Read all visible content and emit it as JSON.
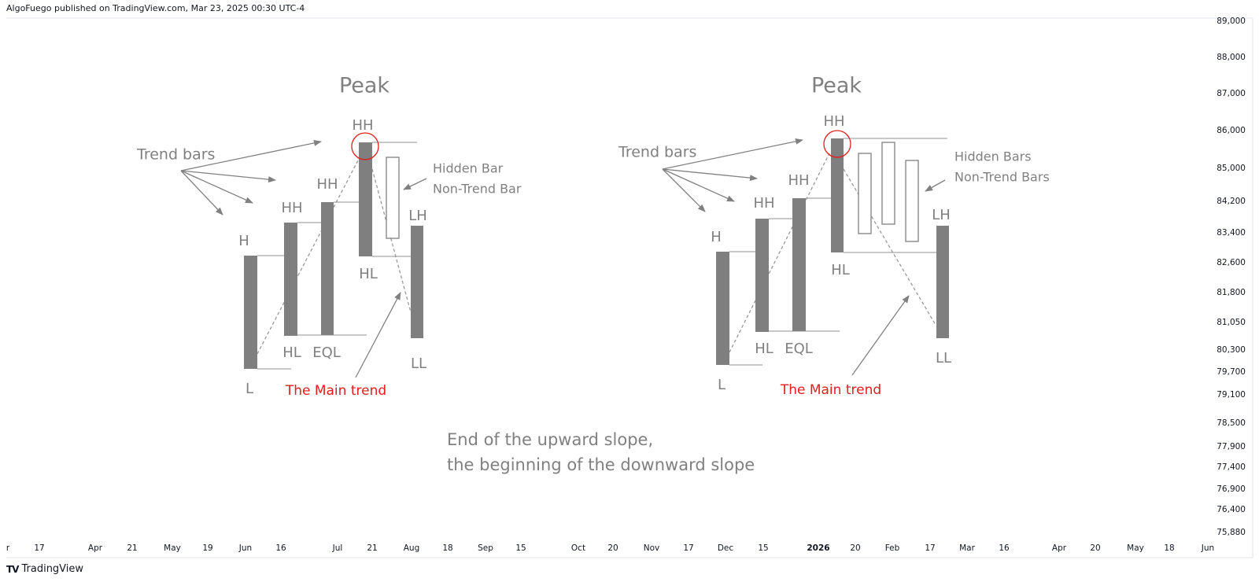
{
  "header": {
    "published": "AlgoFuego published on TradingView.com, Mar 23, 2025 00:30 UTC-4"
  },
  "footer": {
    "logo_mark": "TV",
    "logo_text": "TradingView"
  },
  "price_axis": [
    "89,000",
    "88,000",
    "87,000",
    "86,000",
    "85,000",
    "84,200",
    "83,400",
    "82,600",
    "81,800",
    "81,050",
    "80,300",
    "79,700",
    "79,100",
    "78,500",
    "77,900",
    "77,400",
    "76,900",
    "76,400",
    "75,880"
  ],
  "time_axis": [
    {
      "label": "r"
    },
    {
      "label": "17"
    },
    {
      "label": "Apr"
    },
    {
      "label": "21"
    },
    {
      "label": "May"
    },
    {
      "label": "19"
    },
    {
      "label": "Jun"
    },
    {
      "label": "16"
    },
    {
      "label": "Jul"
    },
    {
      "label": "21"
    },
    {
      "label": "Aug"
    },
    {
      "label": "18"
    },
    {
      "label": "Sep"
    },
    {
      "label": "15"
    },
    {
      "label": "Oct"
    },
    {
      "label": "20"
    },
    {
      "label": "Nov"
    },
    {
      "label": "17"
    },
    {
      "label": "Dec"
    },
    {
      "label": "15"
    },
    {
      "label": "2026",
      "bold": true
    },
    {
      "label": "20"
    },
    {
      "label": "Feb"
    },
    {
      "label": "17"
    },
    {
      "label": "Mar"
    },
    {
      "label": "16"
    },
    {
      "label": "Apr"
    },
    {
      "label": "20"
    },
    {
      "label": "May"
    },
    {
      "label": "18"
    },
    {
      "label": "Jun"
    }
  ],
  "colors": {
    "bar": "#7f7f7f",
    "line": "#a6a6a6",
    "text": "#808080",
    "highlight": "#e31c1c"
  },
  "left": {
    "peak": "Peak",
    "trend_bars": "Trend bars",
    "hh_top": "HH",
    "hh_3": "HH",
    "hh_2": "HH",
    "h": "H",
    "hl_2": "HL",
    "eql": "EQL",
    "hl_4": "HL",
    "lh": "LH",
    "ll": "LL",
    "l": "L",
    "main_trend": "The Main trend",
    "hidden_1": "Hidden Bar",
    "hidden_2": "Non-Trend Bar"
  },
  "right": {
    "peak": "Peak",
    "trend_bars": "Trend bars",
    "hh_top": "HH",
    "hh_3": "HH",
    "hh_2": "HH",
    "h": "H",
    "hl_2": "HL",
    "eql": "EQL",
    "hl_4": "HL",
    "lh": "LH",
    "ll": "LL",
    "l": "L",
    "main_trend": "The Main trend",
    "hidden_1": "Hidden Bars",
    "hidden_2": "Non-Trend Bars"
  },
  "caption": {
    "line1": "End of the upward slope,",
    "line2": "the beginning of the downward slope"
  }
}
